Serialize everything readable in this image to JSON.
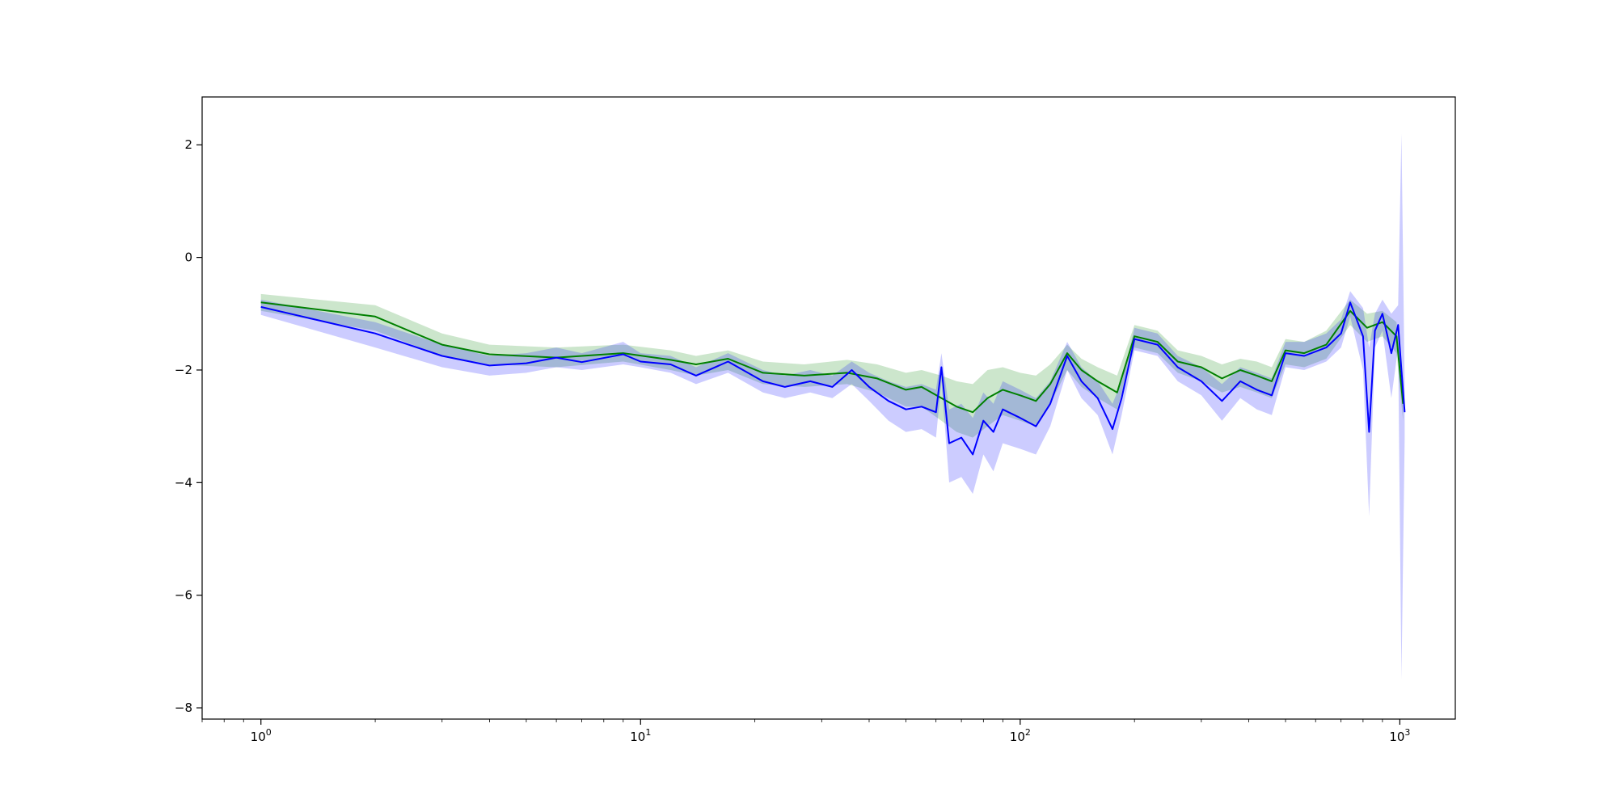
{
  "chart_data": {
    "type": "line",
    "title": "",
    "xlabel": "",
    "ylabel": "",
    "xscale": "log",
    "xlim": [
      0.7,
      1400
    ],
    "ylim": [
      -8.2,
      2.85
    ],
    "grid": false,
    "legend": "none",
    "x_ticks": [
      {
        "value": 1,
        "base": "10",
        "exp": "0"
      },
      {
        "value": 10,
        "base": "10",
        "exp": "1"
      },
      {
        "value": 100,
        "base": "10",
        "exp": "2"
      },
      {
        "value": 1000,
        "base": "10",
        "exp": "3"
      }
    ],
    "y_ticks": [
      {
        "value": 2,
        "label": "2"
      },
      {
        "value": 0,
        "label": "0"
      },
      {
        "value": -2,
        "label": "−2"
      },
      {
        "value": -4,
        "label": "−4"
      },
      {
        "value": -6,
        "label": "−6"
      },
      {
        "value": -8,
        "label": "−8"
      }
    ],
    "series": [
      {
        "color": "#008000",
        "band_color": "#008000",
        "points": [
          [
            1,
            -0.8,
            -0.95,
            -0.65
          ],
          [
            2,
            -1.05,
            -1.3,
            -0.85
          ],
          [
            3,
            -1.55,
            -1.75,
            -1.35
          ],
          [
            4,
            -1.72,
            -1.9,
            -1.55
          ],
          [
            6,
            -1.78,
            -1.95,
            -1.6
          ],
          [
            9,
            -1.7,
            -1.85,
            -1.55
          ],
          [
            12,
            -1.82,
            -2.0,
            -1.65
          ],
          [
            14,
            -1.9,
            -2.1,
            -1.75
          ],
          [
            17,
            -1.8,
            -2.0,
            -1.65
          ],
          [
            21,
            -2.05,
            -2.25,
            -1.85
          ],
          [
            27,
            -2.1,
            -2.3,
            -1.9
          ],
          [
            35,
            -2.05,
            -2.25,
            -1.82
          ],
          [
            42,
            -2.15,
            -2.4,
            -1.9
          ],
          [
            50,
            -2.35,
            -2.65,
            -2.05
          ],
          [
            55,
            -2.3,
            -2.65,
            -2.0
          ],
          [
            62,
            -2.5,
            -2.9,
            -2.1
          ],
          [
            68,
            -2.65,
            -3.1,
            -2.2
          ],
          [
            75,
            -2.75,
            -3.2,
            -2.25
          ],
          [
            82,
            -2.5,
            -3.0,
            -2.0
          ],
          [
            90,
            -2.35,
            -2.8,
            -1.95
          ],
          [
            100,
            -2.45,
            -2.9,
            -2.05
          ],
          [
            110,
            -2.55,
            -3.0,
            -2.1
          ],
          [
            120,
            -2.25,
            -2.6,
            -1.9
          ],
          [
            133,
            -1.7,
            -2.0,
            -1.55
          ],
          [
            145,
            -2.0,
            -2.3,
            -1.8
          ],
          [
            160,
            -2.2,
            -2.5,
            -1.95
          ],
          [
            180,
            -2.4,
            -2.7,
            -2.1
          ],
          [
            200,
            -1.4,
            -1.6,
            -1.2
          ],
          [
            230,
            -1.5,
            -1.7,
            -1.3
          ],
          [
            260,
            -1.85,
            -2.05,
            -1.65
          ],
          [
            300,
            -1.95,
            -2.2,
            -1.75
          ],
          [
            340,
            -2.15,
            -2.4,
            -1.9
          ],
          [
            380,
            -2.0,
            -2.3,
            -1.8
          ],
          [
            420,
            -2.1,
            -2.4,
            -1.85
          ],
          [
            460,
            -2.2,
            -2.5,
            -1.95
          ],
          [
            500,
            -1.65,
            -1.9,
            -1.45
          ],
          [
            560,
            -1.7,
            -1.95,
            -1.5
          ],
          [
            640,
            -1.55,
            -1.8,
            -1.3
          ],
          [
            740,
            -0.95,
            -1.2,
            -0.75
          ],
          [
            820,
            -1.25,
            -1.5,
            -1.0
          ],
          [
            900,
            -1.15,
            -1.4,
            -0.95
          ],
          [
            980,
            -1.4,
            -1.7,
            -1.15
          ],
          [
            1020,
            -2.6,
            -2.9,
            -2.3
          ]
        ]
      },
      {
        "color": "#0000ff",
        "band_color": "#0000ff",
        "points": [
          [
            1,
            -0.88,
            -1.02,
            -0.75
          ],
          [
            2,
            -1.35,
            -1.6,
            -1.15
          ],
          [
            3,
            -1.75,
            -1.95,
            -1.55
          ],
          [
            4,
            -1.92,
            -2.1,
            -1.75
          ],
          [
            5,
            -1.88,
            -2.05,
            -1.7
          ],
          [
            6,
            -1.78,
            -1.95,
            -1.6
          ],
          [
            7,
            -1.86,
            -2.0,
            -1.7
          ],
          [
            9,
            -1.72,
            -1.9,
            -1.5
          ],
          [
            10,
            -1.85,
            -1.95,
            -1.7
          ],
          [
            12,
            -1.9,
            -2.05,
            -1.75
          ],
          [
            14,
            -2.1,
            -2.25,
            -1.95
          ],
          [
            17,
            -1.85,
            -2.05,
            -1.7
          ],
          [
            21,
            -2.2,
            -2.4,
            -2.0
          ],
          [
            24,
            -2.3,
            -2.5,
            -2.1
          ],
          [
            28,
            -2.2,
            -2.4,
            -2.0
          ],
          [
            32,
            -2.3,
            -2.5,
            -2.1
          ],
          [
            36,
            -2.0,
            -2.25,
            -1.85
          ],
          [
            40,
            -2.3,
            -2.55,
            -2.05
          ],
          [
            45,
            -2.55,
            -2.9,
            -2.2
          ],
          [
            50,
            -2.7,
            -3.1,
            -2.3
          ],
          [
            55,
            -2.65,
            -3.05,
            -2.25
          ],
          [
            60,
            -2.75,
            -3.2,
            -2.35
          ],
          [
            62,
            -1.95,
            -2.2,
            -1.7
          ],
          [
            65,
            -3.3,
            -4.0,
            -2.7
          ],
          [
            70,
            -3.2,
            -3.9,
            -2.6
          ],
          [
            75,
            -3.5,
            -4.2,
            -2.85
          ],
          [
            80,
            -2.9,
            -3.5,
            -2.4
          ],
          [
            85,
            -3.1,
            -3.8,
            -2.6
          ],
          [
            90,
            -2.7,
            -3.3,
            -2.2
          ],
          [
            100,
            -2.85,
            -3.4,
            -2.35
          ],
          [
            110,
            -3.0,
            -3.5,
            -2.5
          ],
          [
            120,
            -2.6,
            -3.0,
            -2.2
          ],
          [
            133,
            -1.75,
            -2.0,
            -1.5
          ],
          [
            145,
            -2.2,
            -2.5,
            -1.95
          ],
          [
            160,
            -2.5,
            -2.8,
            -2.2
          ],
          [
            175,
            -3.05,
            -3.5,
            -2.6
          ],
          [
            185,
            -2.5,
            -2.8,
            -2.2
          ],
          [
            200,
            -1.45,
            -1.65,
            -1.25
          ],
          [
            230,
            -1.55,
            -1.75,
            -1.35
          ],
          [
            260,
            -1.95,
            -2.2,
            -1.75
          ],
          [
            300,
            -2.2,
            -2.45,
            -1.95
          ],
          [
            340,
            -2.55,
            -2.9,
            -2.25
          ],
          [
            380,
            -2.2,
            -2.5,
            -1.95
          ],
          [
            420,
            -2.35,
            -2.7,
            -2.05
          ],
          [
            460,
            -2.45,
            -2.8,
            -2.15
          ],
          [
            500,
            -1.7,
            -1.95,
            -1.5
          ],
          [
            560,
            -1.75,
            -2.0,
            -1.5
          ],
          [
            640,
            -1.6,
            -1.85,
            -1.35
          ],
          [
            700,
            -1.35,
            -1.6,
            -1.1
          ],
          [
            740,
            -0.8,
            -1.05,
            -0.6
          ],
          [
            800,
            -1.4,
            -2.0,
            -0.9
          ],
          [
            830,
            -3.1,
            -4.6,
            -1.6
          ],
          [
            860,
            -1.3,
            -1.6,
            -1.0
          ],
          [
            900,
            -1.0,
            -1.3,
            -0.75
          ],
          [
            950,
            -1.7,
            -2.5,
            -1.0
          ],
          [
            990,
            -1.2,
            -1.6,
            -0.85
          ],
          [
            1010,
            -2.0,
            -7.5,
            2.2
          ],
          [
            1030,
            -2.75,
            -3.2,
            -2.3
          ]
        ]
      }
    ]
  }
}
